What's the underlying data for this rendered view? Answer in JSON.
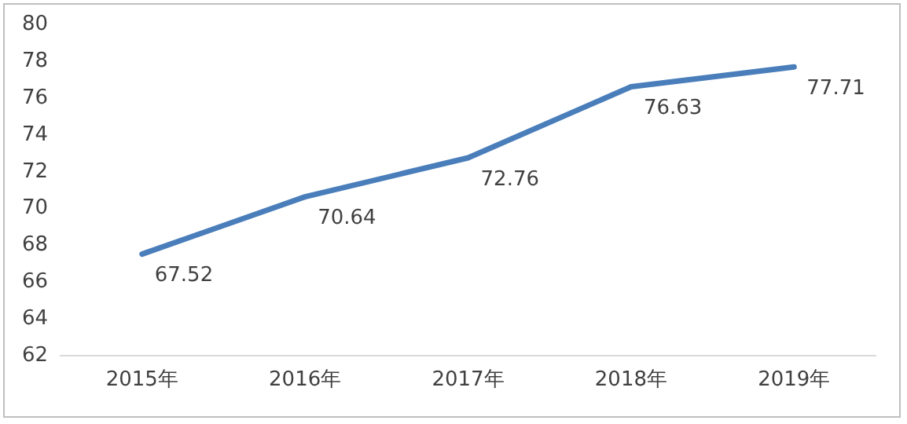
{
  "chart_data": {
    "type": "line",
    "categories": [
      "2015年",
      "2016年",
      "2017年",
      "2018年",
      "2019年"
    ],
    "series": [
      {
        "color": "#4a7ebb",
        "values": [
          67.52,
          70.64,
          72.76,
          76.63,
          77.71
        ]
      }
    ],
    "ylim": [
      62,
      80
    ],
    "yticks": [
      62,
      64,
      66,
      68,
      70,
      72,
      74,
      76,
      78,
      80
    ],
    "grid": false,
    "legend": false,
    "marker": "none",
    "line_style": "solid",
    "data_labels": true
  }
}
